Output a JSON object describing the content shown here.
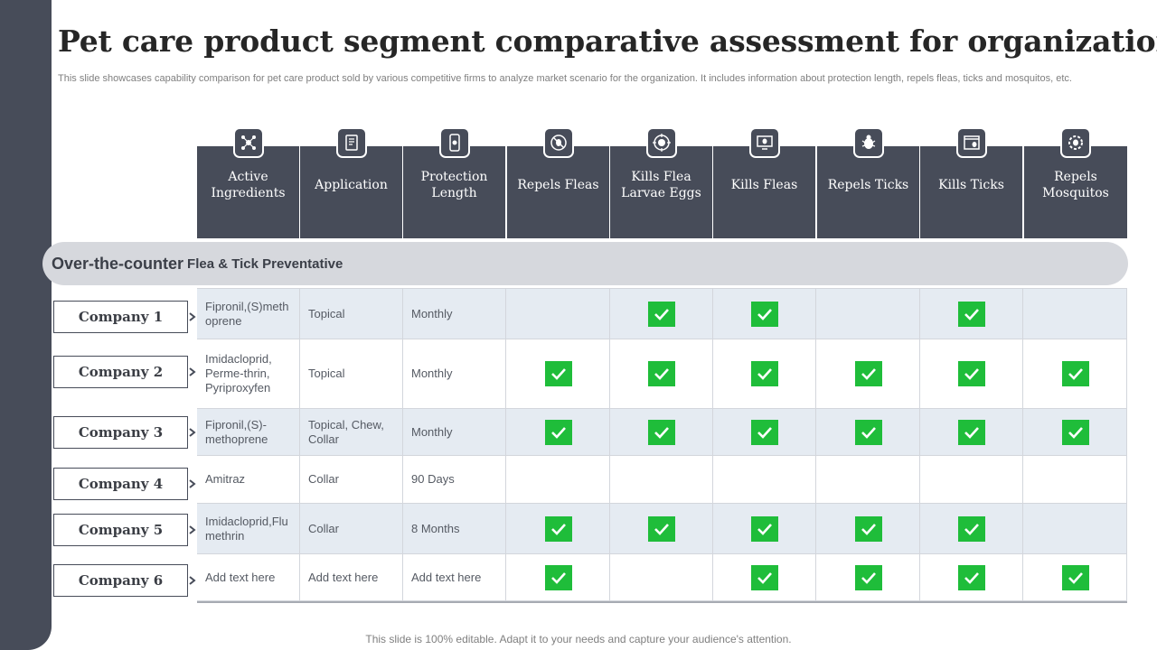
{
  "title": "Pet care product segment comparative assessment for organization",
  "subtitle": "This slide showcases capability comparison for pet care product sold by various competitive firms to analyze market scenario for the organization. It includes information about protection length, repels fleas, ticks and mosquitos, etc.",
  "columns": [
    {
      "label": "Active Ingredients",
      "icon": "molecule-icon"
    },
    {
      "label": "Application",
      "icon": "document-icon"
    },
    {
      "label": "Protection Length",
      "icon": "phone-icon"
    },
    {
      "label": "Repels Fleas",
      "icon": "no-bug-icon"
    },
    {
      "label": "Kills Flea Larvae Eggs",
      "icon": "target-bug-icon"
    },
    {
      "label": "Kills Fleas",
      "icon": "monitor-bug-icon"
    },
    {
      "label": "Repels Ticks",
      "icon": "bug-icon"
    },
    {
      "label": "Kills Ticks",
      "icon": "browser-bug-icon"
    },
    {
      "label": "Repels Mosquitos",
      "icon": "gear-bug-icon"
    }
  ],
  "section": {
    "big": "Over-the-counter",
    "small": "Flea & Tick Preventative"
  },
  "rows": [
    {
      "company": "Company 1",
      "ingredients": "Fipronil,(S)meth oprene",
      "application": "Topical",
      "protection": "Monthly",
      "checks": [
        false,
        true,
        true,
        false,
        true,
        false
      ]
    },
    {
      "company": "Company 2",
      "ingredients": "Imidacloprid, Perme-thrin, Pyriproxyfen",
      "application": "Topical",
      "protection": "Monthly",
      "checks": [
        true,
        true,
        true,
        true,
        true,
        true
      ]
    },
    {
      "company": "Company 3",
      "ingredients": "Fipronil,(S)-methoprene",
      "application": "Topical, Chew, Collar",
      "protection": "Monthly",
      "checks": [
        true,
        true,
        true,
        true,
        true,
        true
      ]
    },
    {
      "company": "Company 4",
      "ingredients": "Amitraz",
      "application": "Collar",
      "protection": "90 Days",
      "checks": [
        false,
        false,
        false,
        false,
        false,
        false
      ]
    },
    {
      "company": "Company 5",
      "ingredients": "Imidacloprid,Flu methrin",
      "application": "Collar",
      "protection": "8 Months",
      "checks": [
        true,
        true,
        true,
        true,
        true,
        false
      ]
    },
    {
      "company": "Company 6",
      "ingredients": "Add text here",
      "application": "Add text here",
      "protection": "Add text here",
      "checks": [
        true,
        false,
        true,
        true,
        true,
        true
      ]
    }
  ],
  "footer": "This slide is 100% editable. Adapt it to your needs and capture your audience's attention.",
  "colors": {
    "header": "#474c59",
    "check": "#1fbd3a",
    "shaded_row": "#e5ebf2",
    "band": "#d6d8dd"
  }
}
